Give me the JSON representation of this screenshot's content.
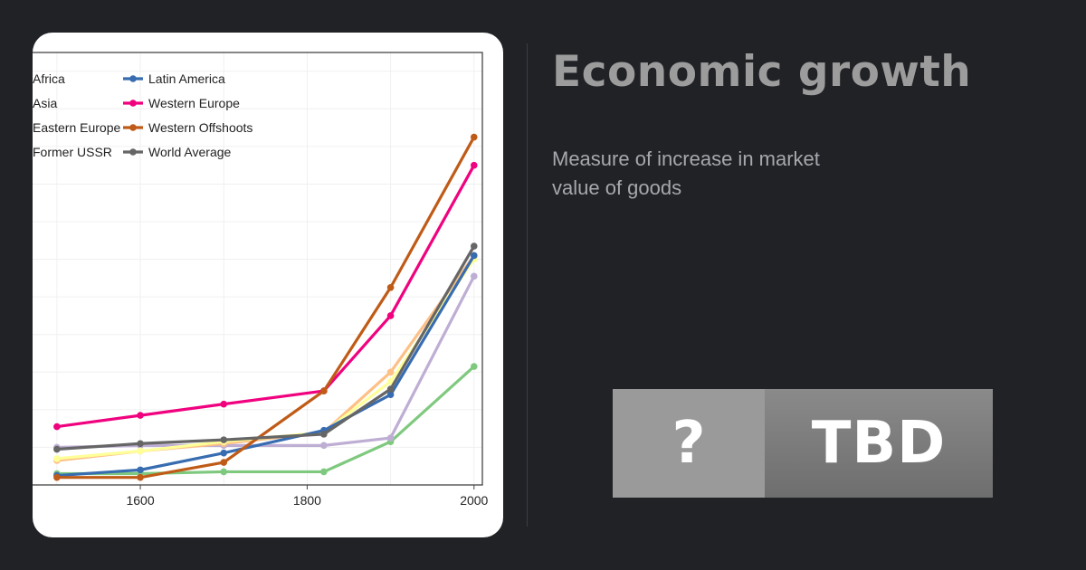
{
  "page": {
    "title": "Economic growth",
    "subtitle": "Measure of increase in market value of goods"
  },
  "badge": {
    "question": "?",
    "status": "TBD"
  },
  "chart_data": {
    "type": "line",
    "title": "",
    "xlabel": "",
    "ylabel": "",
    "xlim": [
      1460,
      2010
    ],
    "ylim": [
      0,
      23
    ],
    "x_ticks": [
      "1600",
      "1800",
      "2000"
    ],
    "grid": true,
    "legend_position": "top-left",
    "series": [
      {
        "name": "Africa",
        "color": "#7fc97f",
        "x": [
          1500,
          1600,
          1700,
          1820,
          1900,
          2000
        ],
        "y": [
          0.6,
          0.6,
          0.7,
          0.7,
          2.3,
          6.3
        ]
      },
      {
        "name": "Asia",
        "color": "#beaed4",
        "x": [
          1500,
          1600,
          1700,
          1820,
          1900,
          2000
        ],
        "y": [
          2.0,
          2.1,
          2.1,
          2.1,
          2.5,
          11.1
        ]
      },
      {
        "name": "Eastern Europe",
        "color": "#fdc086",
        "x": [
          1500,
          1600,
          1700,
          1820,
          1900,
          2000
        ],
        "y": [
          1.3,
          1.8,
          2.2,
          2.8,
          6.0,
          12.2
        ]
      },
      {
        "name": "Former USSR",
        "color": "#ffff99",
        "x": [
          1500,
          1600,
          1700,
          1820,
          1900,
          2000
        ],
        "y": [
          1.4,
          1.8,
          2.3,
          2.8,
          5.5,
          12.0
        ]
      },
      {
        "name": "Latin America",
        "color": "#386cb0",
        "x": [
          1500,
          1600,
          1700,
          1820,
          1900,
          2000
        ],
        "y": [
          0.5,
          0.8,
          1.7,
          2.9,
          4.8,
          12.2
        ]
      },
      {
        "name": "Western Europe",
        "color": "#f0027f",
        "x": [
          1500,
          1600,
          1700,
          1820,
          1900,
          2000
        ],
        "y": [
          3.1,
          3.7,
          4.3,
          5.0,
          9.0,
          17.0
        ]
      },
      {
        "name": "Western Offshoots",
        "color": "#bf5b17",
        "x": [
          1500,
          1600,
          1700,
          1820,
          1900,
          2000
        ],
        "y": [
          0.4,
          0.4,
          1.2,
          5.0,
          10.5,
          18.5
        ]
      },
      {
        "name": "World Average",
        "color": "#666666",
        "x": [
          1500,
          1600,
          1700,
          1820,
          1900,
          2000
        ],
        "y": [
          1.9,
          2.2,
          2.4,
          2.7,
          5.1,
          12.7
        ]
      }
    ]
  }
}
